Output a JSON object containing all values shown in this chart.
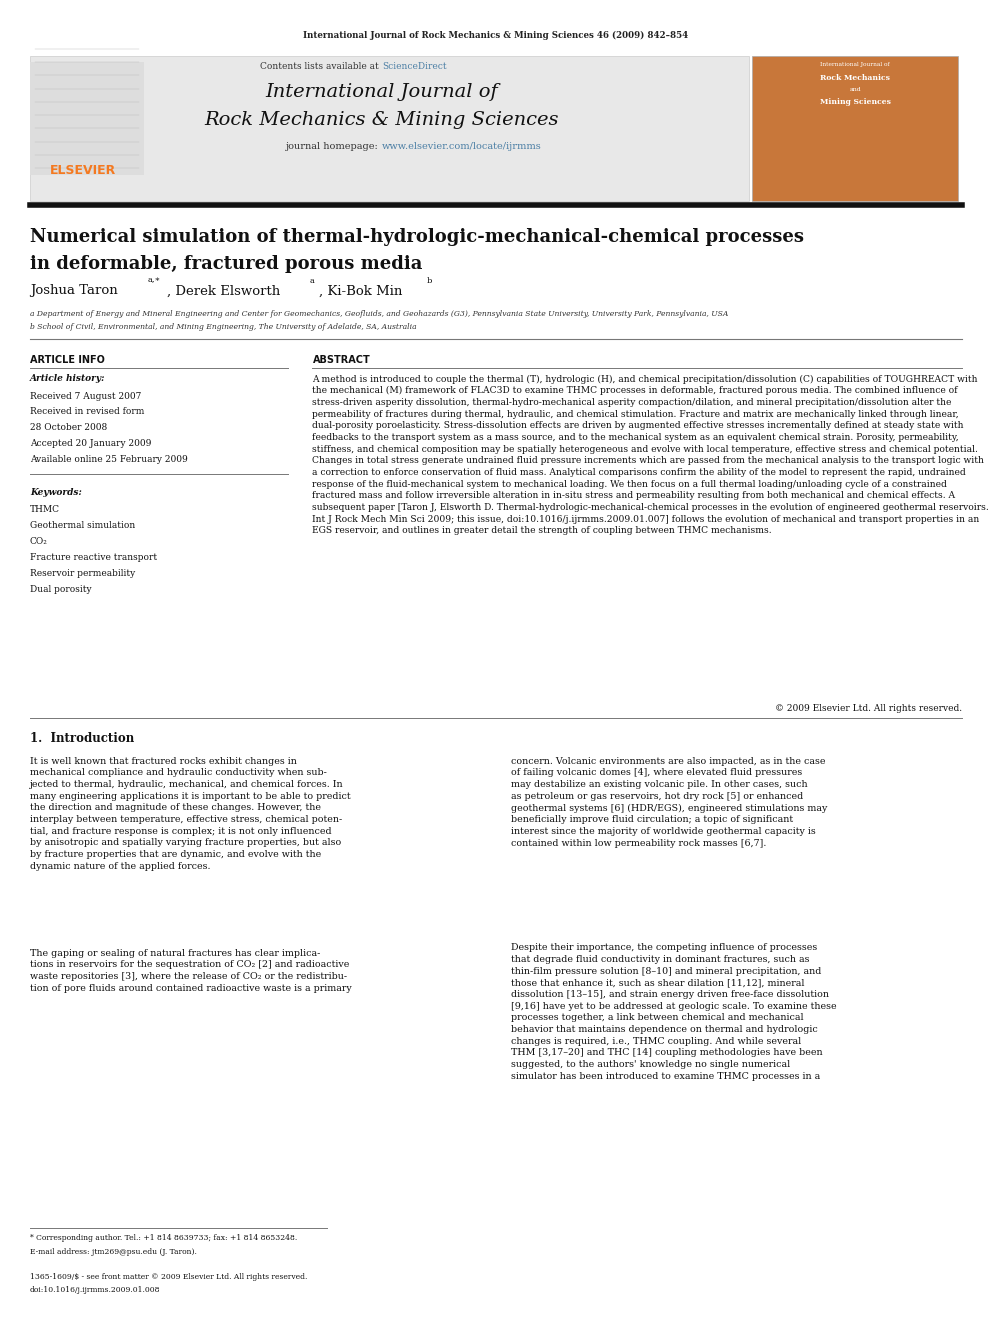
{
  "page_width": 9.92,
  "page_height": 13.23,
  "bg_color": "#ffffff",
  "top_journal_line": "International Journal of Rock Mechanics & Mining Sciences 46 (2009) 842–854",
  "header_bg": "#e8e8e8",
  "header_title_line1": "International Journal of",
  "header_title_line2": "Rock Mechanics & Mining Sciences",
  "header_url_label": "journal homepage: ",
  "header_url": "www.elsevier.com/locate/ijrmms",
  "header_sciencedirect_label": "Contents lists available at ",
  "header_sciencedirect": "ScienceDirect",
  "paper_title_line1": "Numerical simulation of thermal-hydrologic-mechanical-chemical processes",
  "paper_title_line2": "in deformable, fractured porous media",
  "affil_a": "a Department of Energy and Mineral Engineering and Center for Geomechanics, Geofluids, and Geohazards (G3), Pennsylvania State University, University Park, Pennsylvania, USA",
  "affil_b": "b School of Civil, Environmental, and Mining Engineering, The University of Adelaide, SA, Australia",
  "article_info_title": "ARTICLE INFO",
  "article_history_title": "Article history:",
  "received_line": "Received 7 August 2007",
  "revised_line": "Received in revised form",
  "revised_date": "28 October 2008",
  "accepted_line": "Accepted 20 January 2009",
  "available_line": "Available online 25 February 2009",
  "keywords_title": "Keywords:",
  "keywords": [
    "THMC",
    "Geothermal simulation",
    "CO₂",
    "Fracture reactive transport",
    "Reservoir permeability",
    "Dual porosity"
  ],
  "abstract_title": "ABSTRACT",
  "abstract_text": "A method is introduced to couple the thermal (T), hydrologic (H), and chemical precipitation/dissolution (C) capabilities of TOUGHREACT with the mechanical (M) framework of FLAC3D to examine THMC processes in deformable, fractured porous media. The combined influence of stress-driven asperity dissolution, thermal-hydro-mechanical asperity compaction/dilation, and mineral precipitation/dissolution alter the permeability of fractures during thermal, hydraulic, and chemical stimulation. Fracture and matrix are mechanically linked through linear, dual-porosity poroelasticity. Stress-dissolution effects are driven by augmented effective stresses incrementally defined at steady state with feedbacks to the transport system as a mass source, and to the mechanical system as an equivalent chemical strain. Porosity, permeability, stiffness, and chemical composition may be spatially heterogeneous and evolve with local temperature, effective stress and chemical potential. Changes in total stress generate undrained fluid pressure increments which are passed from the mechanical analysis to the transport logic with a correction to enforce conservation of fluid mass. Analytical comparisons confirm the ability of the model to represent the rapid, undrained response of the fluid-mechanical system to mechanical loading. We then focus on a full thermal loading/unloading cycle of a constrained fractured mass and follow irreversible alteration in in-situ stress and permeability resulting from both mechanical and chemical effects. A subsequent paper [Taron J, Elsworth D. Thermal-hydrologic-mechanical-chemical processes in the evolution of engineered geothermal reservoirs. Int J Rock Mech Min Sci 2009; this issue, doi:10.1016/j.ijrmms.2009.01.007] follows the evolution of mechanical and transport properties in an EGS reservoir, and outlines in greater detail the strength of coupling between THMC mechanisms.",
  "copyright_line": "© 2009 Elsevier Ltd. All rights reserved.",
  "section1_title": "1.  Introduction",
  "intro_col1_para1": "It is well known that fractured rocks exhibit changes in\nmechanical compliance and hydraulic conductivity when sub-\njected to thermal, hydraulic, mechanical, and chemical forces. In\nmany engineering applications it is important to be able to predict\nthe direction and magnitude of these changes. However, the\ninterplay between temperature, effective stress, chemical poten-\ntial, and fracture response is complex; it is not only influenced\nby anisotropic and spatially varying fracture properties, but also\nby fracture properties that are dynamic, and evolve with the\ndynamic nature of the applied forces.",
  "intro_col1_para2": "The gaping or sealing of natural fractures has clear implica-\ntions in reservoirs for the sequestration of CO₂ [2] and radioactive\nwaste repositories [3], where the release of CO₂ or the redistribu-\ntion of pore fluids around contained radioactive waste is a primary",
  "intro_col2_para1": "concern. Volcanic environments are also impacted, as in the case\nof failing volcanic domes [4], where elevated fluid pressures\nmay destabilize an existing volcanic pile. In other cases, such\nas petroleum or gas reservoirs, hot dry rock [5] or enhanced\ngeothermal systems [6] (HDR/EGS), engineered stimulations may\nbeneficially improve fluid circulation; a topic of significant\ninterest since the majority of worldwide geothermal capacity is\ncontained within low permeability rock masses [6,7].",
  "intro_col2_para2": "Despite their importance, the competing influence of processes\nthat degrade fluid conductivity in dominant fractures, such as\nthin-film pressure solution [8–10] and mineral precipitation, and\nthose that enhance it, such as shear dilation [11,12], mineral\ndissolution [13–15], and strain energy driven free-face dissolution\n[9,16] have yet to be addressed at geologic scale. To examine these\nprocesses together, a link between chemical and mechanical\nbehavior that maintains dependence on thermal and hydrologic\nchanges is required, i.e., THMC coupling. And while several\nTHM [3,17–20] and THC [14] coupling methodologies have been\nsuggested, to the authors' knowledge no single numerical\nsimulator has been introduced to examine THMC processes in a",
  "footer_note": "* Corresponding author. Tel.: +1 814 8639733; fax: +1 814 8653248.",
  "footer_email": "E-mail address: jtm269@psu.edu (J. Taron).",
  "footer_issn": "1365-1609/$ - see front matter © 2009 Elsevier Ltd. All rights reserved.",
  "footer_doi": "doi:10.1016/j.ijrmms.2009.01.008",
  "elsevier_color": "#f47920",
  "sciencedirect_color": "#4c7fa5",
  "url_color": "#4c7fa5"
}
